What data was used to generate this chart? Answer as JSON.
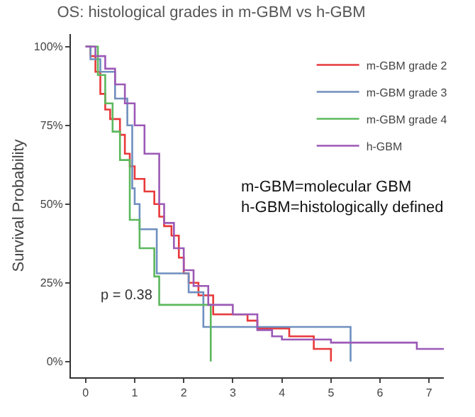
{
  "chart_data": {
    "type": "step",
    "title": "OS: histological grades in m-GBM vs h-GBM",
    "ylabel": "Survival Probability",
    "annotations": [
      "p = 0.38",
      "m-GBM=molecular GBM\nh-GBM=histologically defined"
    ],
    "xlim": [
      -0.3,
      7.3
    ],
    "xticks": [
      0,
      1,
      2,
      3,
      4,
      5,
      6,
      7
    ],
    "ylim": [
      -5,
      104
    ],
    "yticks": [
      {
        "value": 0,
        "label": "0%"
      },
      {
        "value": 25,
        "label": "25%"
      },
      {
        "value": 50,
        "label": "50%"
      },
      {
        "value": 75,
        "label": "75%"
      },
      {
        "value": 100,
        "label": "100%"
      }
    ],
    "legend": "top right",
    "marker": "none",
    "line_style": "solid",
    "series": [
      {
        "name": "m-GBM grade 2",
        "color": "#e8393a",
        "x": [
          0,
          0.1,
          0.2,
          0.3,
          0.4,
          0.5,
          0.7,
          0.8,
          0.9,
          1.0,
          1.2,
          1.4,
          1.5,
          1.6,
          1.75,
          1.9,
          2.0,
          2.1,
          2.3,
          2.6,
          3.3,
          3.5,
          4.15,
          4.65,
          5.0,
          5.0
        ],
        "values": [
          100,
          97,
          92,
          85,
          80,
          77,
          72,
          66,
          62,
          58,
          54,
          50,
          46,
          43,
          40,
          33,
          28,
          25,
          21,
          15,
          13,
          10.5,
          8,
          4,
          0,
          0
        ]
      },
      {
        "name": "m-GBM grade 3",
        "color": "#6f8fbf",
        "x": [
          0,
          0.1,
          0.3,
          0.6,
          0.85,
          0.95,
          1.0,
          1.1,
          1.45,
          2.1,
          2.4,
          5.4,
          5.4
        ],
        "values": [
          100,
          96,
          92,
          83.5,
          75,
          55,
          50,
          42,
          28,
          22,
          11,
          0,
          0
        ]
      },
      {
        "name": "m-GBM grade 4",
        "color": "#5cb85c",
        "x": [
          0,
          0.25,
          0.4,
          0.55,
          0.7,
          0.9,
          1.1,
          1.4,
          1.5,
          2.55,
          2.55
        ],
        "values": [
          100,
          91,
          82,
          73,
          64,
          45,
          36,
          27,
          18,
          0,
          0
        ]
      },
      {
        "name": "h-GBM",
        "color": "#9b59b6",
        "x": [
          0,
          0.2,
          0.4,
          0.6,
          0.8,
          1.0,
          1.2,
          1.5,
          1.6,
          1.8,
          2.0,
          2.2,
          2.5,
          3.0,
          3.5,
          3.8,
          4.0,
          5.0,
          6.75,
          7.3
        ],
        "values": [
          100,
          97,
          93,
          88,
          82,
          75,
          66,
          50,
          44,
          36,
          29,
          24,
          18,
          15,
          10,
          8,
          7,
          6,
          4,
          4
        ]
      }
    ]
  }
}
